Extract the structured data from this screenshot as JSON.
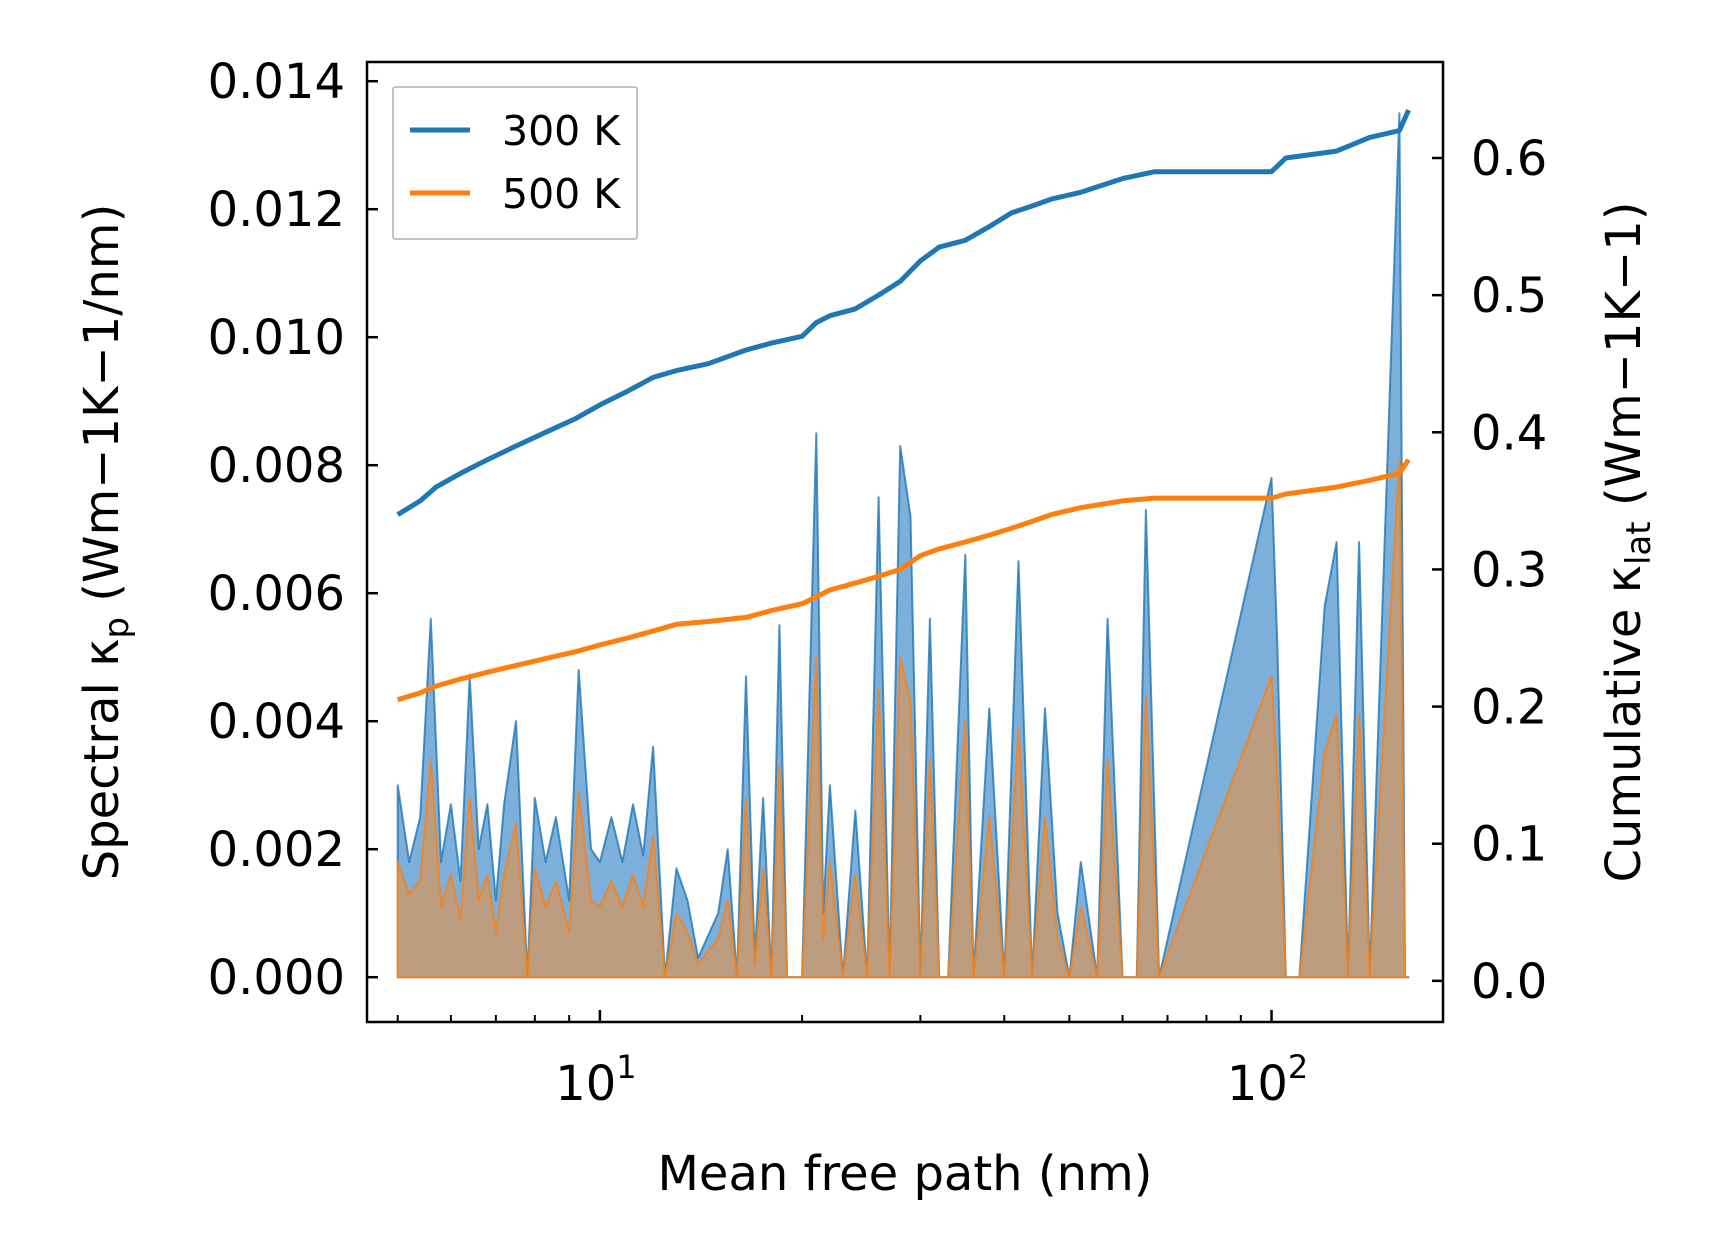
{
  "chart_data": {
    "type": "line",
    "title": "",
    "xlabel": "Mean free path (nm)",
    "ylabel_left": {
      "main": "Spectral κ",
      "sub": "p",
      "units": "(Wm−1K−1/nm)"
    },
    "ylabel_right": {
      "main": "Cumulative κ",
      "sub": "lat",
      "units": "(Wm−1K−1)"
    },
    "xscale": "log",
    "xlim": [
      4.5,
      180
    ],
    "ylim_left": [
      -0.0007,
      0.0143
    ],
    "ylim_right": [
      -0.03,
      0.67
    ],
    "x_ticks": [
      {
        "value": 10,
        "base": "10",
        "exp": "1"
      },
      {
        "value": 100,
        "base": "10",
        "exp": "2"
      }
    ],
    "y_ticks_left": [
      "0.000",
      "0.002",
      "0.004",
      "0.006",
      "0.008",
      "0.010",
      "0.012",
      "0.014"
    ],
    "y_ticks_right": [
      "0.0",
      "0.1",
      "0.2",
      "0.3",
      "0.4",
      "0.5",
      "0.6"
    ],
    "legend": {
      "position": "top-left",
      "entries": [
        "300 K",
        "500 K"
      ]
    },
    "colors": {
      "series_300": "#1f77b4",
      "series_500": "#ff7f0e",
      "spectral_fill_300": "#5b9bd0",
      "spectral_fill_500": "#c89a6e"
    },
    "cumulative": [
      {
        "name": "300 K",
        "x": [
          5,
          5.4,
          5.7,
          6.2,
          6.8,
          7.5,
          8.3,
          9.2,
          10,
          11,
          12,
          13,
          14.5,
          16.5,
          18,
          20,
          21,
          22,
          24,
          26,
          28,
          30,
          32,
          35,
          38,
          41,
          44,
          47,
          52,
          60,
          67,
          80,
          100,
          105,
          125,
          140,
          155,
          160
        ],
        "y": [
          0.34,
          0.35,
          0.36,
          0.37,
          0.38,
          0.39,
          0.4,
          0.41,
          0.42,
          0.43,
          0.44,
          0.445,
          0.45,
          0.46,
          0.465,
          0.47,
          0.48,
          0.485,
          0.49,
          0.5,
          0.51,
          0.525,
          0.535,
          0.54,
          0.55,
          0.56,
          0.565,
          0.57,
          0.575,
          0.585,
          0.59,
          0.59,
          0.59,
          0.6,
          0.605,
          0.615,
          0.62,
          0.635
        ]
      },
      {
        "name": "500 K",
        "x": [
          5,
          5.4,
          5.7,
          6.2,
          6.8,
          7.5,
          8.3,
          9.2,
          10,
          11,
          12,
          13,
          14.5,
          16.5,
          18,
          20,
          21,
          22,
          24,
          26,
          28,
          30,
          32,
          35,
          38,
          41,
          44,
          47,
          52,
          60,
          67,
          80,
          100,
          105,
          125,
          140,
          155,
          160
        ],
        "y": [
          0.205,
          0.21,
          0.215,
          0.22,
          0.225,
          0.23,
          0.235,
          0.24,
          0.245,
          0.25,
          0.255,
          0.26,
          0.262,
          0.265,
          0.27,
          0.275,
          0.28,
          0.285,
          0.29,
          0.295,
          0.3,
          0.31,
          0.315,
          0.32,
          0.325,
          0.33,
          0.335,
          0.34,
          0.345,
          0.35,
          0.352,
          0.352,
          0.352,
          0.355,
          0.36,
          0.365,
          0.37,
          0.38
        ]
      }
    ],
    "spectral": [
      {
        "name": "300 K",
        "x": [
          5,
          5.2,
          5.4,
          5.6,
          5.8,
          6,
          6.2,
          6.4,
          6.6,
          6.8,
          7,
          7.2,
          7.5,
          7.8,
          8,
          8.3,
          8.6,
          9,
          9.3,
          9.7,
          10,
          10.4,
          10.8,
          11.2,
          11.6,
          12,
          12.5,
          13,
          13.5,
          14,
          15,
          15.5,
          16,
          16.5,
          17,
          17.5,
          18,
          18.5,
          19,
          20,
          21,
          21.5,
          22,
          23,
          24,
          25,
          26,
          27,
          28,
          29,
          30,
          31,
          32,
          33,
          35,
          36,
          38,
          40,
          42,
          44,
          46,
          48,
          50,
          52,
          55,
          57,
          60,
          63,
          65,
          68,
          100,
          102,
          105,
          110,
          120,
          125,
          130,
          135,
          140,
          155,
          158,
          160
        ],
        "y": [
          0.003,
          0.0018,
          0.0025,
          0.0056,
          0.0018,
          0.0027,
          0.0015,
          0.0047,
          0.002,
          0.0027,
          0.0012,
          0.0027,
          0.004,
          0,
          0.0028,
          0.0018,
          0.0025,
          0.0012,
          0.0048,
          0.002,
          0.0018,
          0.0025,
          0.0018,
          0.0027,
          0.0019,
          0.0036,
          0,
          0.0017,
          0.0012,
          0.0003,
          0.001,
          0.002,
          0,
          0.0047,
          0.0003,
          0.0028,
          0,
          0.0055,
          0,
          0,
          0.0085,
          0.001,
          0.003,
          0,
          0.0026,
          0,
          0.0075,
          0,
          0.0083,
          0.0072,
          0,
          0.0056,
          0,
          0,
          0.0066,
          0,
          0.0042,
          0,
          0.0065,
          0,
          0.0042,
          0.001,
          0,
          0.0018,
          0,
          0.0056,
          0,
          0,
          0.0073,
          0,
          0.0078,
          0.0052,
          0,
          0,
          0.0058,
          0.0068,
          0,
          0.0068,
          0,
          0.0135,
          0,
          0
        ]
      },
      {
        "name": "500 K",
        "x": [
          5,
          5.2,
          5.4,
          5.6,
          5.8,
          6,
          6.2,
          6.4,
          6.6,
          6.8,
          7,
          7.2,
          7.5,
          7.8,
          8,
          8.3,
          8.6,
          9,
          9.3,
          9.7,
          10,
          10.4,
          10.8,
          11.2,
          11.6,
          12,
          12.5,
          13,
          13.5,
          14,
          15,
          15.5,
          16,
          16.5,
          17,
          17.5,
          18,
          18.5,
          19,
          20,
          21,
          21.5,
          22,
          23,
          24,
          25,
          26,
          27,
          28,
          29,
          30,
          31,
          32,
          33,
          35,
          36,
          38,
          40,
          42,
          44,
          46,
          48,
          50,
          52,
          55,
          57,
          60,
          63,
          65,
          68,
          100,
          102,
          105,
          110,
          120,
          125,
          130,
          135,
          140,
          155,
          158,
          160
        ],
        "y": [
          0.0018,
          0.0013,
          0.0015,
          0.0034,
          0.0011,
          0.0016,
          0.0009,
          0.0028,
          0.0012,
          0.0016,
          0.0007,
          0.0016,
          0.0024,
          0,
          0.0017,
          0.0011,
          0.0015,
          0.0007,
          0.0029,
          0.0012,
          0.0011,
          0.0015,
          0.0011,
          0.0016,
          0.0011,
          0.0022,
          0,
          0.001,
          0.0007,
          0.0002,
          0.0006,
          0.0012,
          0,
          0.0028,
          0.0002,
          0.0017,
          0,
          0.0033,
          0,
          0,
          0.005,
          0.0006,
          0.0018,
          0,
          0.0016,
          0,
          0.0045,
          0,
          0.005,
          0.0043,
          0,
          0.0034,
          0,
          0,
          0.004,
          0,
          0.0025,
          0,
          0.0039,
          0,
          0.0025,
          0.0006,
          0,
          0.0011,
          0,
          0.0034,
          0,
          0,
          0.0044,
          0,
          0.0047,
          0.0031,
          0,
          0,
          0.0035,
          0.0041,
          0,
          0.0041,
          0,
          0.0081,
          0,
          0
        ]
      }
    ]
  }
}
